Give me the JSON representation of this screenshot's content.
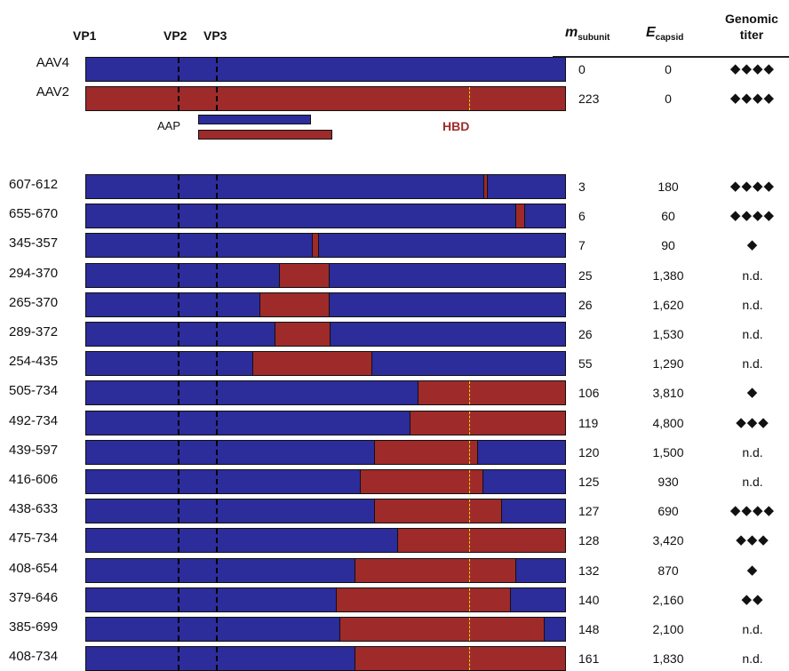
{
  "colors": {
    "aav4": "#2c2c9a",
    "aav2": "#9e2a2a",
    "hbd_marker": "#e8d400"
  },
  "vp_labels": [
    "VP1",
    "VP2",
    "VP3"
  ],
  "headers": {
    "m_main": "m",
    "m_sub": "subunit",
    "e_main": "E",
    "e_sub": "capsid",
    "titer_line1": "Genomic",
    "titer_line2": "titer"
  },
  "aap_label": "AAP",
  "hbd_label": "HBD",
  "vp_fractions": [
    0.0,
    0.19,
    0.27
  ],
  "hbd_fraction": 0.797,
  "aap_range": [
    0.235,
    0.5
  ],
  "parents": [
    {
      "name": "AAV4",
      "msub": "0",
      "ecap": "0",
      "titer": "◆◆◆◆",
      "type": "aav4"
    },
    {
      "name": "AAV2",
      "msub": "223",
      "ecap": "0",
      "titer": "◆◆◆◆",
      "type": "aav2"
    }
  ],
  "chimeras": [
    {
      "name": "607-612",
      "msub": "3",
      "ecap": "180",
      "titer": "◆◆◆◆",
      "red": [
        0.827,
        0.836
      ]
    },
    {
      "name": "655-670",
      "msub": "6",
      "ecap": "60",
      "titer": "◆◆◆◆",
      "red": [
        0.892,
        0.913
      ]
    },
    {
      "name": "345-357",
      "msub": "7",
      "ecap": "90",
      "titer": "◆",
      "red": [
        0.469,
        0.485
      ]
    },
    {
      "name": "294-370",
      "msub": "25",
      "ecap": "1,380",
      "titer": "n.d.",
      "red": [
        0.401,
        0.506
      ]
    },
    {
      "name": "265-370",
      "msub": "26",
      "ecap": "1,620",
      "titer": "n.d.",
      "red": [
        0.361,
        0.506
      ]
    },
    {
      "name": "289-372",
      "msub": "26",
      "ecap": "1,530",
      "titer": "n.d.",
      "red": [
        0.392,
        0.508
      ]
    },
    {
      "name": "254-435",
      "msub": "55",
      "ecap": "1,290",
      "titer": "n.d.",
      "red": [
        0.346,
        0.595
      ]
    },
    {
      "name": "505-734",
      "msub": "106",
      "ecap": "3,810",
      "titer": "◆",
      "red": [
        0.689,
        1.0
      ]
    },
    {
      "name": "492-734",
      "msub": "119",
      "ecap": "4,800",
      "titer": "◆◆◆",
      "red": [
        0.673,
        1.0
      ]
    },
    {
      "name": "439-597",
      "msub": "120",
      "ecap": "1,500",
      "titer": "n.d.",
      "red": [
        0.599,
        0.815
      ]
    },
    {
      "name": "416-606",
      "msub": "125",
      "ecap": "930",
      "titer": "n.d.",
      "red": [
        0.569,
        0.827
      ]
    },
    {
      "name": "438-633",
      "msub": "127",
      "ecap": "690",
      "titer": "◆◆◆◆",
      "red": [
        0.599,
        0.865
      ]
    },
    {
      "name": "475-734",
      "msub": "128",
      "ecap": "3,420",
      "titer": "◆◆◆",
      "red": [
        0.647,
        1.0
      ]
    },
    {
      "name": "408-654",
      "msub": "132",
      "ecap": "870",
      "titer": "◆",
      "red": [
        0.558,
        0.895
      ]
    },
    {
      "name": "379-646",
      "msub": "140",
      "ecap": "2,160",
      "titer": "◆◆",
      "red": [
        0.519,
        0.884
      ]
    },
    {
      "name": "385-699",
      "msub": "148",
      "ecap": "2,100",
      "titer": "n.d.",
      "red": [
        0.526,
        0.953
      ]
    },
    {
      "name": "408-734",
      "msub": "161",
      "ecap": "1,830",
      "titer": "n.d.",
      "red": [
        0.558,
        1.0
      ]
    }
  ]
}
